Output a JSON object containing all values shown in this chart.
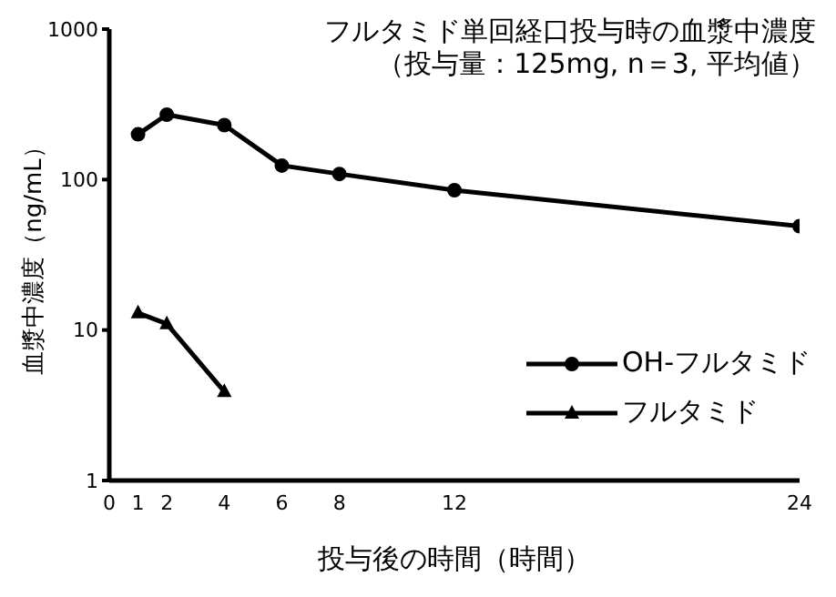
{
  "chart_data": {
    "type": "line",
    "title": "フルタミド単回経口投与時の血漿中濃度",
    "subtitle": "（投与量：125mg, n＝3, 平均値）",
    "xlabel": "投与後の時間（時間）",
    "ylabel": "血漿中濃度（ng/mL）",
    "log": "y",
    "xlim": [
      0,
      24
    ],
    "xticks": [
      0,
      1,
      2,
      4,
      6,
      8,
      12,
      24
    ],
    "ylim": [
      1,
      1000
    ],
    "yticks": [
      1,
      10,
      100,
      1000
    ],
    "grid": false,
    "legend": "right",
    "line_style": "solid",
    "series": [
      {
        "name": "OH-フルタミド",
        "color": "#000000",
        "marker": "circle",
        "x": [
          1,
          2,
          4,
          6,
          8,
          12,
          24
        ],
        "values": [
          200,
          270,
          230,
          124,
          109,
          85,
          49
        ]
      },
      {
        "name": "フルタミド",
        "color": "#000000",
        "marker": "triangle",
        "x": [
          1,
          2,
          4
        ],
        "values": [
          13,
          11,
          3.9
        ]
      }
    ]
  }
}
